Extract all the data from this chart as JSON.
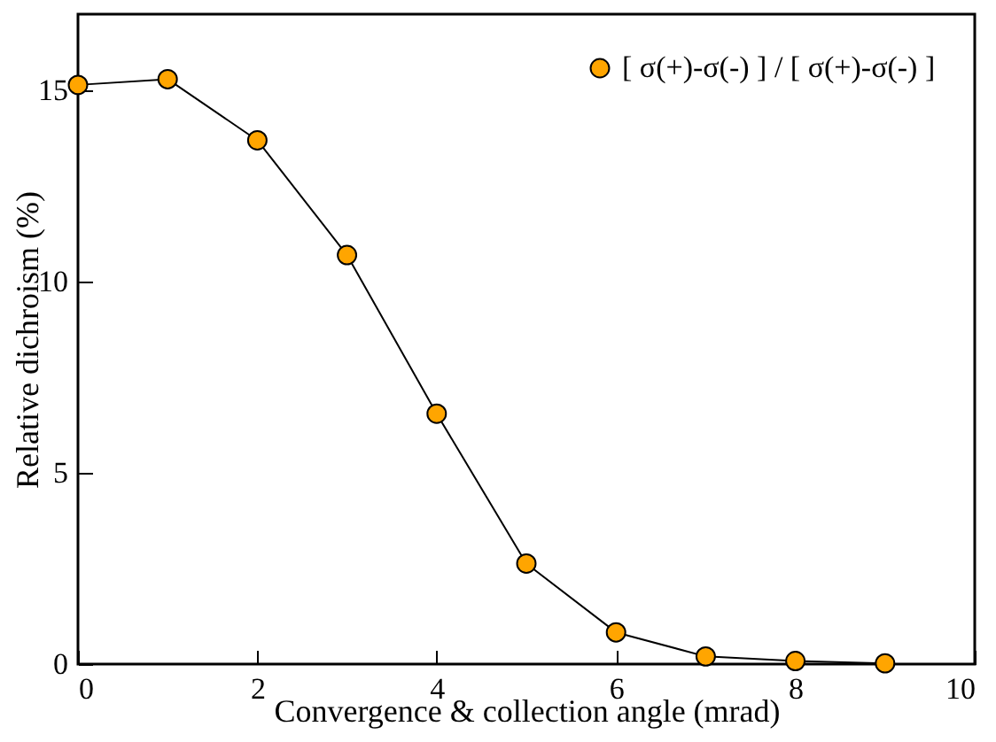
{
  "chart_data": {
    "type": "line",
    "xlabel": "Convergence & collection angle (mrad)",
    "ylabel": "Relative dichroism (%)",
    "x": [
      0,
      1,
      2,
      3,
      4,
      5,
      6,
      7,
      8,
      9
    ],
    "series": [
      {
        "name": "[ σ(+)-σ(-) ] / [ σ(+)-σ(-) ]",
        "color": "#ffa500",
        "values": [
          15.15,
          15.3,
          13.7,
          10.7,
          6.55,
          2.63,
          0.83,
          0.2,
          0.08,
          0.02
        ]
      }
    ],
    "xlim": [
      0,
      10
    ],
    "ylim": [
      0,
      17
    ],
    "xticks": [
      0,
      2,
      4,
      6,
      8,
      10
    ],
    "yticks": [
      0,
      5,
      10,
      15
    ],
    "grid": false,
    "legend": "top right",
    "marker": "circle",
    "line_style": "solid"
  }
}
